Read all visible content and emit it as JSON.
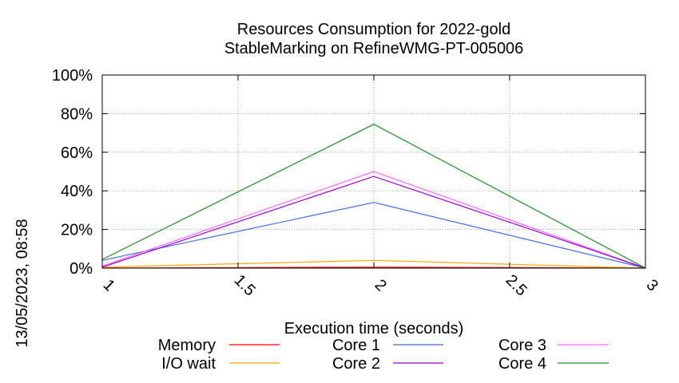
{
  "timestamp": "13/05/2023, 08:58",
  "chart_data": {
    "type": "line",
    "title_line1": "Resources Consumption for 2022-gold",
    "title_line2": "StableMarking on RefineWMG-PT-005006",
    "xlabel": "Execution time (seconds)",
    "ylabel": "",
    "x": [
      1,
      2,
      3
    ],
    "xlim": [
      1,
      3
    ],
    "ylim": [
      0,
      100
    ],
    "x_ticks": [
      1,
      1.5,
      2,
      2.5,
      3
    ],
    "x_tick_labels": [
      "1",
      "1.5",
      "2",
      "2.5",
      "3"
    ],
    "y_ticks": [
      0,
      20,
      40,
      60,
      80,
      100
    ],
    "y_tick_labels": [
      "0%",
      "20%",
      "40%",
      "60%",
      "80%",
      "100%"
    ],
    "grid": true,
    "legend_position": "bottom",
    "series": [
      {
        "name": "Memory",
        "color": "#ff0000",
        "values": [
          0,
          0.5,
          0
        ]
      },
      {
        "name": "Core 1",
        "color": "#4169e1",
        "values": [
          4,
          34,
          0
        ]
      },
      {
        "name": "Core 3",
        "color": "#ff66ff",
        "values": [
          1,
          50,
          0
        ]
      },
      {
        "name": "I/O wait",
        "color": "#ffa500",
        "values": [
          0.5,
          4,
          0
        ]
      },
      {
        "name": "Core 2",
        "color": "#9400d3",
        "values": [
          0.5,
          47.5,
          0
        ]
      },
      {
        "name": "Core 4",
        "color": "#228b22",
        "values": [
          4.5,
          74.5,
          0
        ]
      }
    ]
  }
}
